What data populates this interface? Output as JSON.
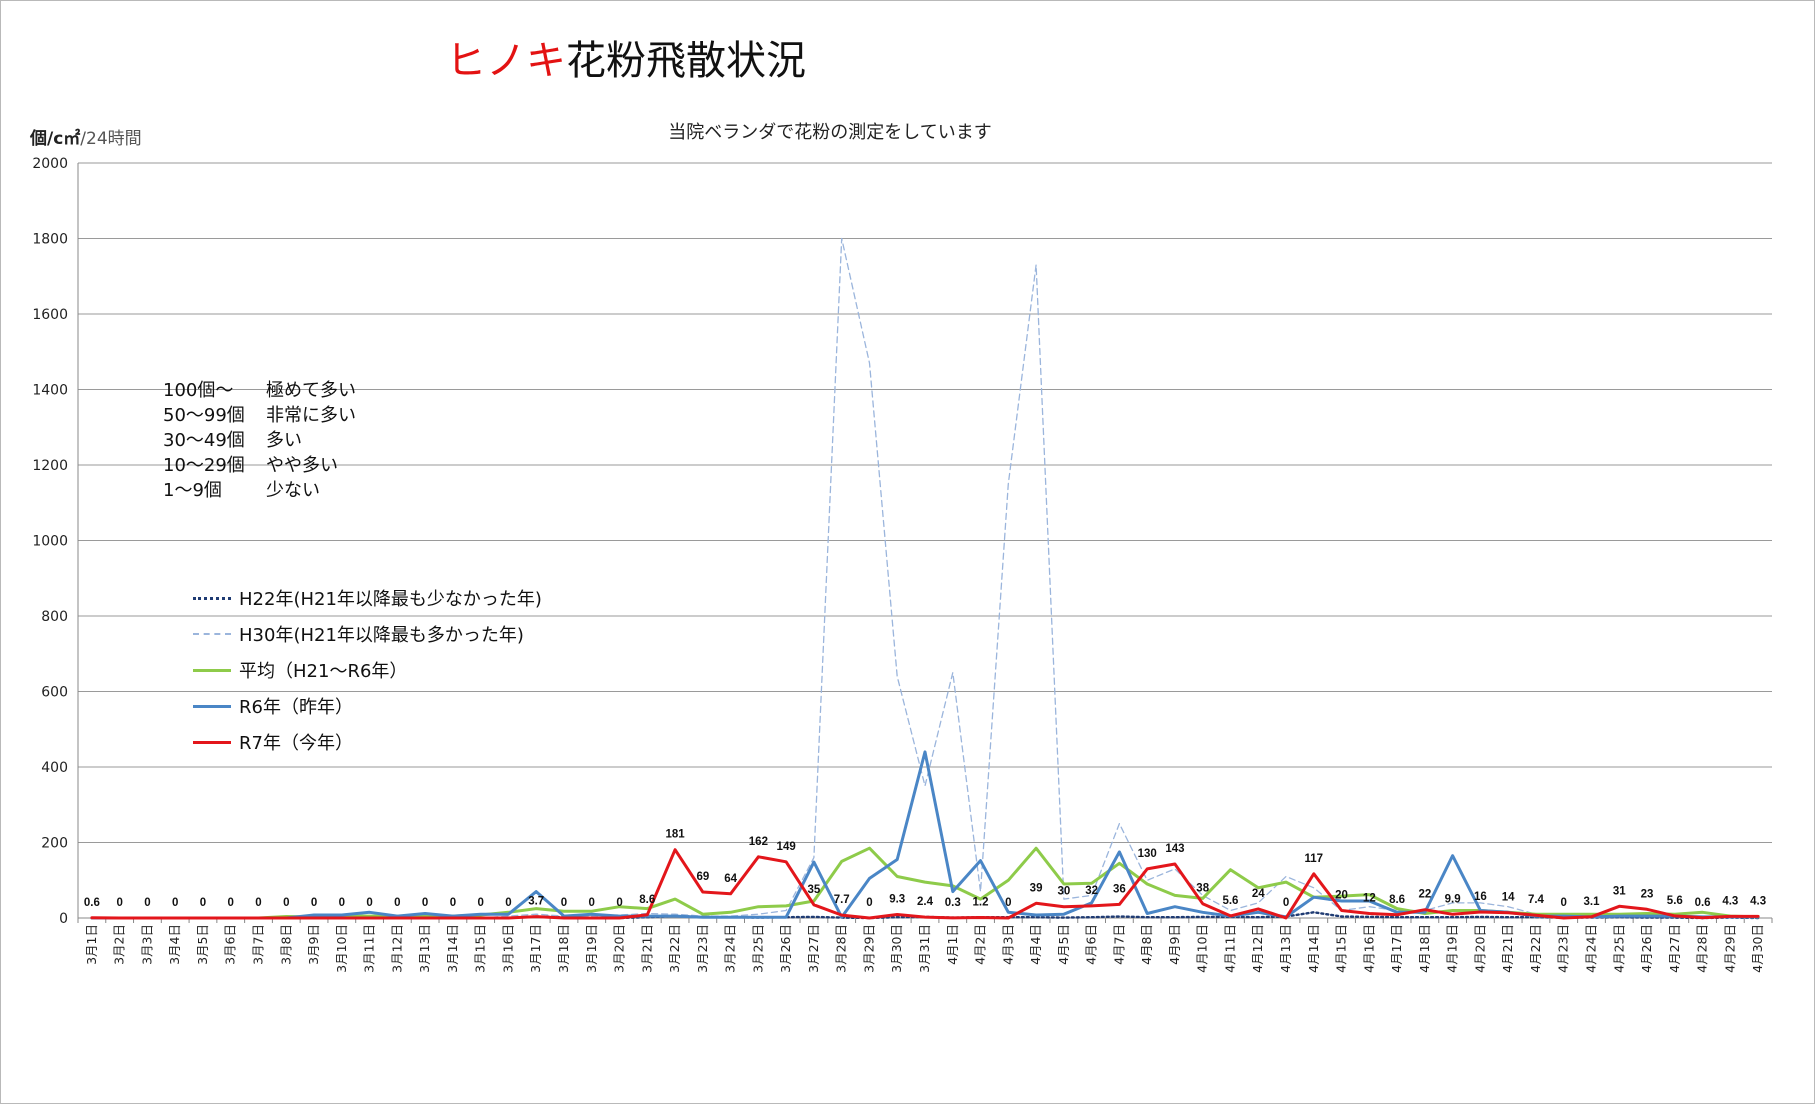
{
  "chart_data": {
    "type": "line",
    "title_red": "ヒノキ",
    "title_black": "花粉飛散状況",
    "subtitle": "当院ベランダで花粉の測定をしています",
    "ylabel_main": "個/c㎡",
    "ylabel_sub": "/24時間",
    "ylim": [
      0,
      2000
    ],
    "yticks": [
      "0",
      "200",
      "400",
      "600",
      "800",
      "1000",
      "1200",
      "1400",
      "1600",
      "1800",
      "2000"
    ],
    "grid": true,
    "legend_position": "left",
    "categories": [
      "3月1日",
      "3月2日",
      "3月3日",
      "3月4日",
      "3月5日",
      "3月6日",
      "3月7日",
      "3月8日",
      "3月9日",
      "3月10日",
      "3月11日",
      "3月12日",
      "3月13日",
      "3月14日",
      "3月15日",
      "3月16日",
      "3月17日",
      "3月18日",
      "3月19日",
      "3月20日",
      "3月21日",
      "3月22日",
      "3月23日",
      "3月24日",
      "3月25日",
      "3月26日",
      "3月27日",
      "3月28日",
      "3月29日",
      "3月30日",
      "3月31日",
      "4月1日",
      "4月2日",
      "4月3日",
      "4月4日",
      "4月5日",
      "4月6日",
      "4月7日",
      "4月8日",
      "4月9日",
      "4月10日",
      "4月11日",
      "4月12日",
      "4月13日",
      "4月14日",
      "4月15日",
      "4月16日",
      "4月17日",
      "4月18日",
      "4月19日",
      "4月20日",
      "4月21日",
      "4月22日",
      "4月23日",
      "4月24日",
      "4月25日",
      "4月26日",
      "4月27日",
      "4月28日",
      "4月29日",
      "4月30日"
    ],
    "series": [
      {
        "name": "H22年(H21年以降最も少なかった年)",
        "color": "#1f3b73",
        "dash": "dotted",
        "values": [
          0,
          0,
          0,
          0,
          0,
          0,
          0,
          0,
          0,
          0,
          0,
          0,
          0,
          0,
          0,
          0,
          4,
          2,
          1,
          0,
          2,
          5,
          3,
          2,
          1,
          2,
          3,
          1,
          0,
          2,
          3,
          1,
          2,
          2,
          2,
          1,
          2,
          4,
          2,
          2,
          3,
          3,
          2,
          4,
          15,
          4,
          3,
          2,
          2,
          2,
          3,
          2,
          2,
          1,
          1,
          2,
          1,
          1,
          0,
          1,
          0
        ]
      },
      {
        "name": "H30年(H21年以降最も多かった年)",
        "color": "#9bb5dc",
        "dash": "dashed",
        "values": [
          0,
          0,
          0,
          0,
          0,
          0,
          0,
          0,
          0,
          0,
          0,
          0,
          0,
          0,
          0,
          5,
          10,
          5,
          5,
          8,
          12,
          10,
          5,
          5,
          10,
          20,
          160,
          1800,
          1470,
          640,
          350,
          650,
          70,
          1150,
          1730,
          50,
          60,
          250,
          100,
          130,
          60,
          20,
          40,
          110,
          80,
          20,
          30,
          20,
          20,
          40,
          40,
          30,
          10,
          10,
          10,
          10,
          5,
          5,
          5,
          2,
          0
        ]
      },
      {
        "name": "平均（H21～R6年）",
        "color": "#8ecb4a",
        "dash": "solid",
        "values": [
          0,
          0,
          0,
          0,
          0,
          0,
          0,
          4,
          3,
          5,
          5,
          5,
          5,
          5,
          8,
          15,
          25,
          18,
          18,
          30,
          25,
          50,
          10,
          15,
          30,
          32,
          45,
          150,
          185,
          110,
          95,
          85,
          50,
          100,
          185,
          90,
          92,
          145,
          90,
          60,
          52,
          128,
          80,
          95,
          55,
          58,
          62,
          25,
          12,
          20,
          20,
          15,
          10,
          10,
          10,
          10,
          12,
          10,
          15,
          5,
          3
        ]
      },
      {
        "name": "R6年（昨年）",
        "color": "#4a86c6",
        "dash": "solid",
        "values": [
          0,
          0,
          0,
          0,
          0,
          0,
          0,
          0,
          8,
          8,
          15,
          5,
          12,
          5,
          10,
          10,
          70,
          5,
          10,
          5,
          5,
          5,
          2,
          2,
          2,
          2,
          148,
          2,
          105,
          155,
          440,
          70,
          152,
          15,
          8,
          10,
          40,
          175,
          12,
          30,
          15,
          5,
          15,
          3,
          55,
          45,
          45,
          15,
          15,
          165,
          20,
          15,
          5,
          5,
          3,
          5,
          5,
          5,
          3,
          3,
          3
        ]
      },
      {
        "name": "R7年（今年）",
        "color": "#e3161b",
        "dash": "solid",
        "values": [
          0.6,
          0,
          0,
          0,
          0,
          0,
          0,
          0,
          0,
          0,
          0,
          0,
          0,
          0,
          0,
          0,
          3.7,
          0,
          0,
          0,
          8.6,
          181,
          69,
          64,
          162,
          149,
          35,
          7.7,
          0,
          9.3,
          2.4,
          0.3,
          1.2,
          0,
          39,
          30,
          32,
          36,
          130,
          143,
          38,
          5.6,
          24,
          0,
          117,
          20,
          12,
          8.6,
          22,
          9.9,
          16,
          14,
          7.4,
          0,
          3.1,
          31,
          23,
          5.6,
          0.6,
          4.3,
          4.3
        ]
      }
    ],
    "data_labels": [
      "0.6",
      "0",
      "0",
      "0",
      "0",
      "0",
      "0",
      "0",
      "0",
      "0",
      "0",
      "0",
      "0",
      "0",
      "0",
      "0",
      "3.7",
      "0",
      "0",
      "0",
      "8.6",
      "181",
      "69",
      "64",
      "162",
      "149",
      "35",
      "7.7",
      "0",
      "9.3",
      "2.4",
      "0.3",
      "1.2",
      "0",
      "39",
      "30",
      "32",
      "36",
      "130",
      "143",
      "38",
      "5.6",
      "24",
      "0",
      "117",
      "20",
      "12",
      "8.6",
      "22",
      "9.9",
      "16",
      "14",
      "7.4",
      "0",
      "3.1",
      "31",
      "23",
      "5.6",
      "0.6",
      "4.3",
      "4.3"
    ]
  },
  "levels": [
    {
      "range": "100個～",
      "desc": "極めて多い"
    },
    {
      "range": "50～99個",
      "desc": "非常に多い"
    },
    {
      "range": "30～49個",
      "desc": "多い"
    },
    {
      "range": "10～29個",
      "desc": "やや多い"
    },
    {
      "range": "1～9個",
      "desc": "少ない"
    }
  ]
}
